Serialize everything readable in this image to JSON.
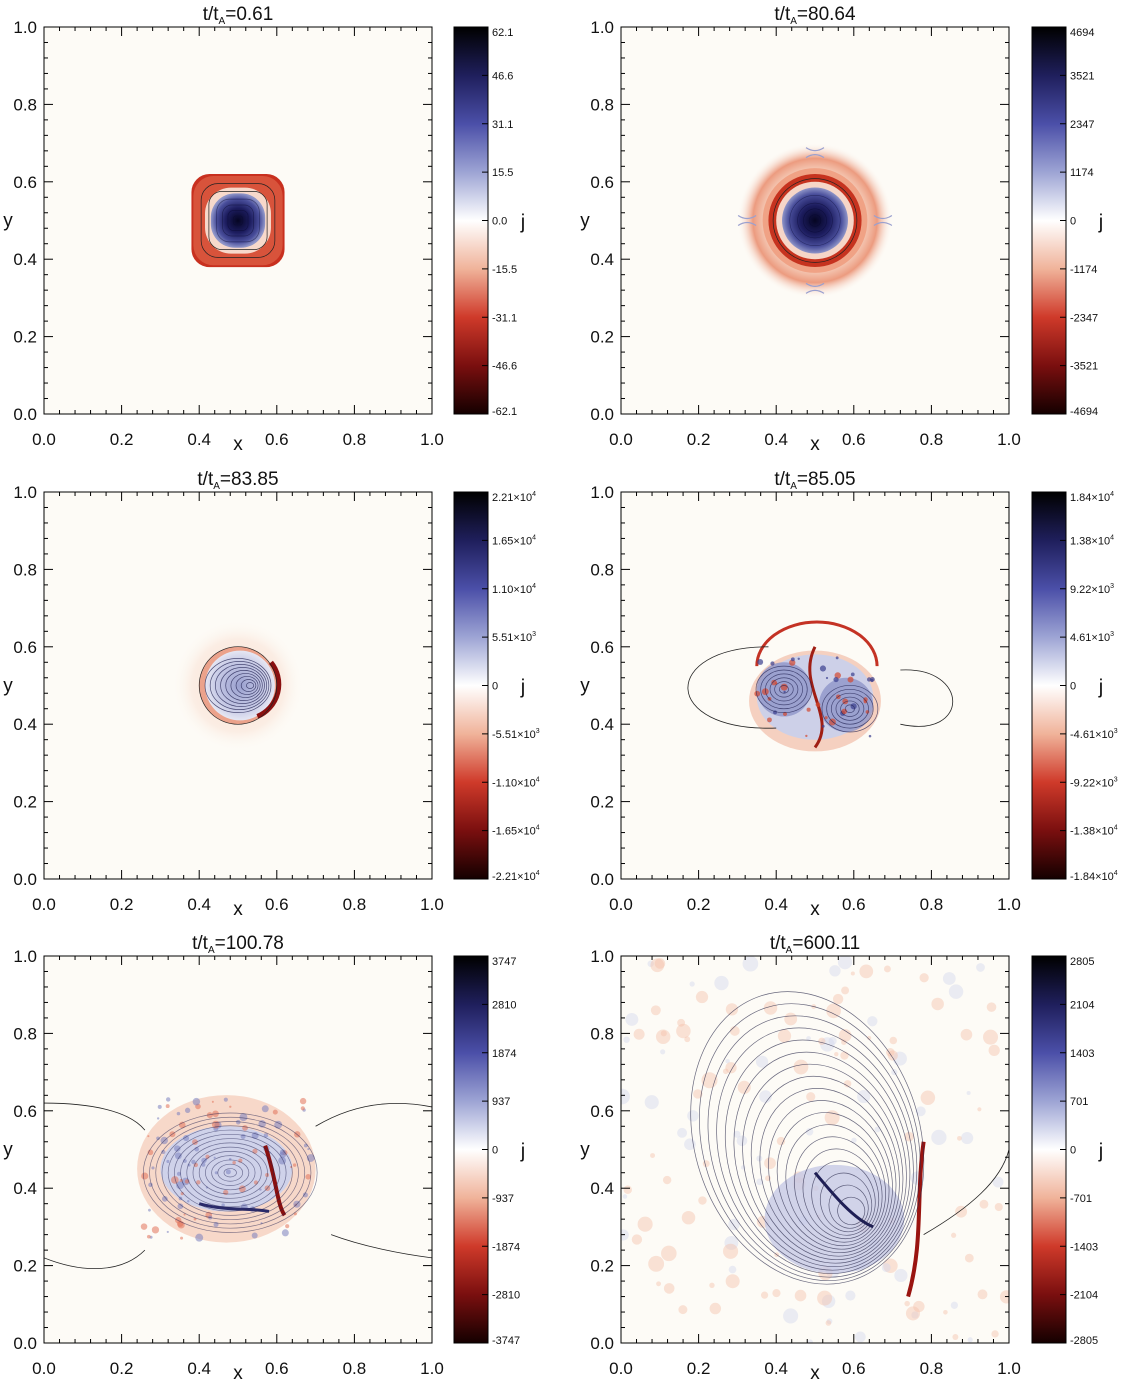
{
  "figure": {
    "background": "#fdfbf6",
    "colormap": [
      "#000000",
      "#1f1f5c",
      "#4b4fa8",
      "#9da4d4",
      "#ffffff",
      "#f0b39a",
      "#cf3a2a",
      "#7a0f0f",
      "#140000"
    ]
  },
  "chart_data": [
    {
      "type": "heatmap",
      "title": "t/t_A=0.61",
      "title_parts": [
        "t/t",
        "A",
        "=0.61"
      ],
      "xlabel": "x",
      "ylabel": "y",
      "xlim": [
        0.0,
        1.0
      ],
      "ylim": [
        0.0,
        1.0
      ],
      "x_ticks": [
        "0.0",
        "0.2",
        "0.4",
        "0.6",
        "0.8",
        "1.0"
      ],
      "y_ticks": [
        "0.0",
        "0.2",
        "0.4",
        "0.6",
        "0.8",
        "1.0"
      ],
      "colorbar_label": "j",
      "colorbar_range": [
        -62.1,
        62.1
      ],
      "colorbar_ticks": [
        "62.1",
        "46.6",
        "31.1",
        "15.5",
        "0.0",
        "-15.5",
        "-31.1",
        "-46.6",
        "-62.1"
      ],
      "structure": "square"
    },
    {
      "type": "heatmap",
      "title": "t/t_A=80.64",
      "title_parts": [
        "t/t",
        "A",
        "=80.64"
      ],
      "xlabel": "x",
      "ylabel": "y",
      "xlim": [
        0.0,
        1.0
      ],
      "ylim": [
        0.0,
        1.0
      ],
      "x_ticks": [
        "0.0",
        "0.2",
        "0.4",
        "0.6",
        "0.8",
        "1.0"
      ],
      "y_ticks": [
        "0.0",
        "0.2",
        "0.4",
        "0.6",
        "0.8",
        "1.0"
      ],
      "colorbar_label": "j",
      "colorbar_range": [
        -4694,
        4694
      ],
      "colorbar_ticks": [
        "4694",
        "3521",
        "2347",
        "1174",
        "0",
        "-1174",
        "-2347",
        "-3521",
        "-4694"
      ],
      "structure": "circle"
    },
    {
      "type": "heatmap",
      "title": "t/t_A=83.85",
      "title_parts": [
        "t/t",
        "A",
        "=83.85"
      ],
      "xlabel": "x",
      "ylabel": "y",
      "xlim": [
        0.0,
        1.0
      ],
      "ylim": [
        0.0,
        1.0
      ],
      "x_ticks": [
        "0.0",
        "0.2",
        "0.4",
        "0.6",
        "0.8",
        "1.0"
      ],
      "y_ticks": [
        "0.0",
        "0.2",
        "0.4",
        "0.6",
        "0.8",
        "1.0"
      ],
      "colorbar_label": "j",
      "colorbar_range": [
        -22100,
        22100
      ],
      "colorbar_ticks": [
        {
          "m": "2.21",
          "e": "4"
        },
        {
          "m": "1.65",
          "e": "4"
        },
        {
          "m": "1.10",
          "e": "4"
        },
        {
          "m": "5.51",
          "e": "3"
        },
        {
          "m": "0",
          "e": ""
        },
        {
          "m": "-5.51",
          "e": "3"
        },
        {
          "m": "-1.10",
          "e": "4"
        },
        {
          "m": "-1.65",
          "e": "4"
        },
        {
          "m": "-2.21",
          "e": "4"
        }
      ],
      "structure": "tilted"
    },
    {
      "type": "heatmap",
      "title": "t/t_A=85.05",
      "title_parts": [
        "t/t",
        "A",
        "=85.05"
      ],
      "xlabel": "x",
      "ylabel": "y",
      "xlim": [
        0.0,
        1.0
      ],
      "ylim": [
        0.0,
        1.0
      ],
      "x_ticks": [
        "0.0",
        "0.2",
        "0.4",
        "0.6",
        "0.8",
        "1.0"
      ],
      "y_ticks": [
        "0.0",
        "0.2",
        "0.4",
        "0.6",
        "0.8",
        "1.0"
      ],
      "colorbar_label": "j",
      "colorbar_range": [
        -18400,
        18400
      ],
      "colorbar_ticks": [
        {
          "m": "1.84",
          "e": "4"
        },
        {
          "m": "1.38",
          "e": "4"
        },
        {
          "m": "9.22",
          "e": "3"
        },
        {
          "m": "4.61",
          "e": "3"
        },
        {
          "m": "0",
          "e": ""
        },
        {
          "m": "-4.61",
          "e": "3"
        },
        {
          "m": "-9.22",
          "e": "3"
        },
        {
          "m": "-1.38",
          "e": "4"
        },
        {
          "m": "-1.84",
          "e": "4"
        }
      ],
      "structure": "split"
    },
    {
      "type": "heatmap",
      "title": "t/t_A=100.78",
      "title_parts": [
        "t/t",
        "A",
        "=100.78"
      ],
      "xlabel": "x",
      "ylabel": "y",
      "xlim": [
        0.0,
        1.0
      ],
      "ylim": [
        0.0,
        1.0
      ],
      "x_ticks": [
        "0.0",
        "0.2",
        "0.4",
        "0.6",
        "0.8",
        "1.0"
      ],
      "y_ticks": [
        "0.0",
        "0.2",
        "0.4",
        "0.6",
        "0.8",
        "1.0"
      ],
      "colorbar_label": "j",
      "colorbar_range": [
        -3747,
        3747
      ],
      "colorbar_ticks": [
        "3747",
        "2810",
        "1874",
        "937",
        "0",
        "-937",
        "-1874",
        "-2810",
        "-3747"
      ],
      "structure": "turbulent"
    },
    {
      "type": "heatmap",
      "title": "t/t_A=600.11",
      "title_parts": [
        "t/t",
        "A",
        "=600.11"
      ],
      "xlabel": "x",
      "ylabel": "y",
      "xlim": [
        0.0,
        1.0
      ],
      "ylim": [
        0.0,
        1.0
      ],
      "x_ticks": [
        "0.0",
        "0.2",
        "0.4",
        "0.6",
        "0.8",
        "1.0"
      ],
      "y_ticks": [
        "0.0",
        "0.2",
        "0.4",
        "0.6",
        "0.8",
        "1.0"
      ],
      "colorbar_label": "j",
      "colorbar_range": [
        -2805,
        2805
      ],
      "colorbar_ticks": [
        "2805",
        "2104",
        "1403",
        "701",
        "0",
        "-701",
        "-1403",
        "-2104",
        "-2805"
      ],
      "structure": "relaxed"
    }
  ]
}
